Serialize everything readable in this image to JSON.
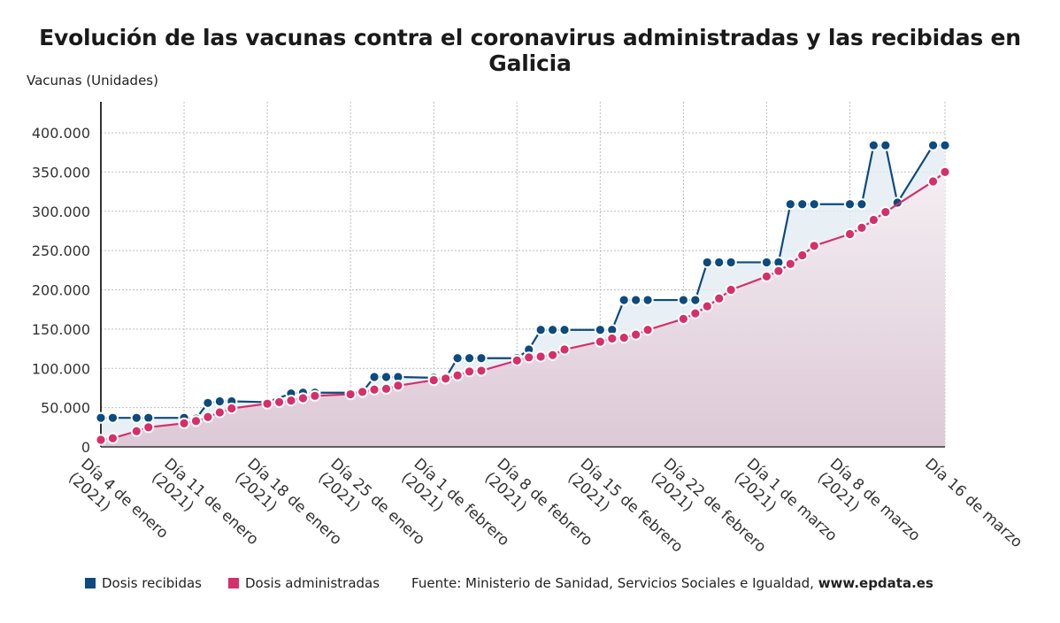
{
  "title": "Evolución de las vacunas contra el coronavirus administradas y las recibidas en Galicia",
  "y_axis_title": "Vacunas (Unidades)",
  "legend": {
    "received": "Dosis recibidas",
    "administered": "Dosis administradas",
    "source_prefix": "Fuente: Ministerio de Sanidad, Servicios Sociales e Igualdad, ",
    "source_site": "www.epdata.es"
  },
  "colors": {
    "received": "#0d4a7e",
    "administered": "#d62f6a",
    "received_fill": "#e4ecf2",
    "administered_fill": "#ddc9d7",
    "grid": "#bdbdbd"
  },
  "chart_data": {
    "type": "line",
    "title": "Evolución de las vacunas contra el coronavirus administradas y las recibidas en Galicia",
    "ylabel": "Vacunas (Unidades)",
    "xlabel": "",
    "ylim": [
      0,
      400000
    ],
    "y_ticks": [
      {
        "value": 0,
        "label": "0"
      },
      {
        "value": 50000,
        "label": "50.000"
      },
      {
        "value": 100000,
        "label": "100.000"
      },
      {
        "value": 150000,
        "label": "150.000"
      },
      {
        "value": 200000,
        "label": "200.000"
      },
      {
        "value": 250000,
        "label": "250.000"
      },
      {
        "value": 300000,
        "label": "300.000"
      },
      {
        "value": 350000,
        "label": "350.000"
      },
      {
        "value": 400000,
        "label": "400.000"
      }
    ],
    "x_ticks": [
      {
        "index": 0,
        "lines": [
          "Día 4 de enero",
          "(2021)"
        ]
      },
      {
        "index": 7,
        "lines": [
          "Día 11 de enero",
          "(2021)"
        ]
      },
      {
        "index": 14,
        "lines": [
          "Día 18 de enero",
          "(2021)"
        ]
      },
      {
        "index": 21,
        "lines": [
          "Día 25 de enero",
          "(2021)"
        ]
      },
      {
        "index": 28,
        "lines": [
          "Día 1 de febrero",
          "(2021)"
        ]
      },
      {
        "index": 35,
        "lines": [
          "Día 8 de febrero",
          "(2021)"
        ]
      },
      {
        "index": 42,
        "lines": [
          "Día 15 de febrero",
          "(2021)"
        ]
      },
      {
        "index": 49,
        "lines": [
          "Día 22 de febrero",
          "(2021)"
        ]
      },
      {
        "index": 56,
        "lines": [
          "Día 1 de marzo",
          "(2021)"
        ]
      },
      {
        "index": 63,
        "lines": [
          "Día 8 de marzo",
          "(2021)"
        ]
      },
      {
        "index": 71,
        "lines": [
          "Día 16 de marzo"
        ]
      }
    ],
    "grid": true,
    "legend_position": "bottom",
    "series": [
      {
        "name": "Dosis recibidas",
        "key": "received",
        "points": [
          [
            0,
            37000
          ],
          [
            1,
            37000
          ],
          [
            3,
            37000
          ],
          [
            4,
            37000
          ],
          [
            7,
            37000
          ],
          [
            8,
            36000
          ],
          [
            9,
            56000
          ],
          [
            10,
            58000
          ],
          [
            11,
            58000
          ],
          [
            14,
            57000
          ],
          [
            16,
            68000
          ],
          [
            17,
            69000
          ],
          [
            18,
            69000
          ],
          [
            21,
            69000
          ],
          [
            22,
            70000
          ],
          [
            23,
            89000
          ],
          [
            24,
            89000
          ],
          [
            25,
            89000
          ],
          [
            28,
            88000
          ],
          [
            29,
            88000
          ],
          [
            30,
            113000
          ],
          [
            31,
            113000
          ],
          [
            32,
            113000
          ],
          [
            35,
            113000
          ],
          [
            36,
            124000
          ],
          [
            37,
            149000
          ],
          [
            38,
            149000
          ],
          [
            39,
            149000
          ],
          [
            42,
            149000
          ],
          [
            43,
            149000
          ],
          [
            44,
            187000
          ],
          [
            45,
            187000
          ],
          [
            46,
            187000
          ],
          [
            49,
            187000
          ],
          [
            50,
            187000
          ],
          [
            51,
            235000
          ],
          [
            52,
            235000
          ],
          [
            53,
            235000
          ],
          [
            56,
            235000
          ],
          [
            57,
            235000
          ],
          [
            58,
            309000
          ],
          [
            59,
            309000
          ],
          [
            60,
            309000
          ],
          [
            63,
            309000
          ],
          [
            64,
            309000
          ],
          [
            65,
            384000
          ],
          [
            66,
            384000
          ],
          [
            67,
            311000
          ],
          [
            70,
            384000
          ],
          [
            71,
            384000
          ]
        ]
      },
      {
        "name": "Dosis administradas",
        "key": "administered",
        "points": [
          [
            0,
            9000
          ],
          [
            1,
            11000
          ],
          [
            3,
            20000
          ],
          [
            4,
            25000
          ],
          [
            7,
            30000
          ],
          [
            8,
            33000
          ],
          [
            9,
            38000
          ],
          [
            10,
            44000
          ],
          [
            11,
            49000
          ],
          [
            14,
            55000
          ],
          [
            15,
            57000
          ],
          [
            16,
            59000
          ],
          [
            17,
            62000
          ],
          [
            18,
            65000
          ],
          [
            21,
            67000
          ],
          [
            22,
            70000
          ],
          [
            23,
            73000
          ],
          [
            24,
            74000
          ],
          [
            25,
            78000
          ],
          [
            28,
            85000
          ],
          [
            29,
            87000
          ],
          [
            30,
            91000
          ],
          [
            31,
            96000
          ],
          [
            32,
            97000
          ],
          [
            35,
            110000
          ],
          [
            36,
            114000
          ],
          [
            37,
            115000
          ],
          [
            38,
            117000
          ],
          [
            39,
            124000
          ],
          [
            42,
            134000
          ],
          [
            43,
            138000
          ],
          [
            44,
            139000
          ],
          [
            45,
            143000
          ],
          [
            46,
            149000
          ],
          [
            49,
            163000
          ],
          [
            50,
            170000
          ],
          [
            51,
            179000
          ],
          [
            52,
            189000
          ],
          [
            53,
            200000
          ],
          [
            56,
            217000
          ],
          [
            57,
            224000
          ],
          [
            58,
            233000
          ],
          [
            59,
            244000
          ],
          [
            60,
            256000
          ],
          [
            63,
            271000
          ],
          [
            64,
            279000
          ],
          [
            65,
            289000
          ],
          [
            66,
            299000
          ],
          [
            70,
            338000
          ],
          [
            71,
            350000
          ]
        ]
      }
    ]
  }
}
